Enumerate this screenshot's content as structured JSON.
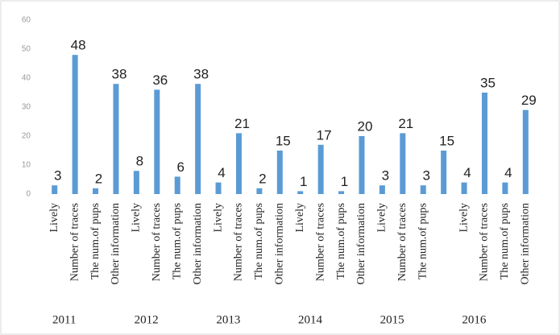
{
  "chart_data": {
    "type": "bar",
    "color": "#5b9bd5",
    "ylim": [
      0,
      60
    ],
    "yticks": [
      0,
      10,
      20,
      30,
      40,
      50,
      60
    ],
    "grid": false,
    "groups": [
      {
        "name": "2011",
        "categories": [
          "Lively",
          "Number of traces",
          "The num.of pups",
          "Other information"
        ],
        "values": [
          3,
          48,
          2,
          38
        ]
      },
      {
        "name": "2012",
        "categories": [
          "Lively",
          "Number of traces",
          "The num.of pups",
          "Other information"
        ],
        "values": [
          8,
          36,
          6,
          38
        ]
      },
      {
        "name": "2013",
        "categories": [
          "Lively",
          "Number of traces",
          "The num.of pups",
          "Other information"
        ],
        "values": [
          4,
          21,
          2,
          15
        ]
      },
      {
        "name": "2014",
        "categories": [
          "Lively",
          "Number of traces",
          "The num.of pups",
          "Other information"
        ],
        "values": [
          1,
          17,
          1,
          20
        ]
      },
      {
        "name": "2015",
        "categories": [
          "Lively",
          "Number of traces",
          "The num.of pups",
          null
        ],
        "values": [
          3,
          21,
          3,
          15
        ]
      },
      {
        "name": "2016",
        "categories": [
          "Lively",
          "Number of traces",
          "The num.of pups",
          "Other information"
        ],
        "values": [
          4,
          35,
          4,
          29
        ]
      }
    ]
  }
}
